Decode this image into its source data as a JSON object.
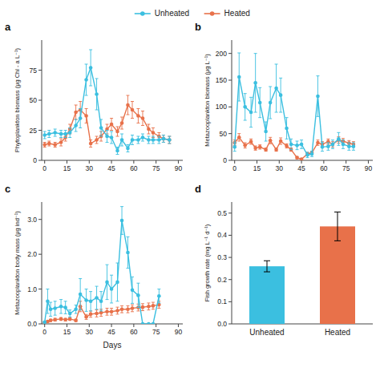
{
  "chart_data": [
    {
      "type": "line",
      "title": "a",
      "ylabel": "Phytoplankton biomass (μg Chl - a L⁻¹)",
      "xlim": [
        -2,
        93
      ],
      "ylim": [
        0,
        100
      ],
      "xticks": [
        0,
        15,
        30,
        45,
        60,
        75,
        90
      ],
      "yticks": [
        0,
        25,
        50,
        75
      ],
      "legend": "top",
      "x": [
        0,
        3,
        7,
        11,
        14,
        17,
        21,
        24,
        28,
        31,
        35,
        38,
        42,
        45,
        49,
        52,
        56,
        59,
        63,
        66,
        70,
        73,
        77,
        80,
        84
      ],
      "series": [
        {
          "name": "Unheated",
          "color": "#3BBFE0",
          "values": [
            21,
            22,
            23,
            22,
            22,
            23,
            29,
            35,
            67,
            77,
            55,
            27,
            20,
            19,
            8,
            17,
            10,
            17,
            17,
            19,
            17,
            17,
            17,
            18,
            17
          ],
          "errors": [
            3,
            3,
            3,
            3,
            3,
            4,
            5,
            8,
            13,
            15,
            13,
            7,
            5,
            5,
            3,
            5,
            3,
            4,
            3,
            3,
            3,
            3,
            3,
            3,
            3
          ]
        },
        {
          "name": "Heated",
          "color": "#E8714A",
          "values": [
            13,
            14,
            13,
            15,
            19,
            26,
            40,
            42,
            37,
            14,
            17,
            20,
            26,
            30,
            24,
            31,
            46,
            42,
            37,
            35,
            26,
            23,
            20,
            18,
            17
          ],
          "errors": [
            2,
            2,
            2,
            3,
            3,
            4,
            6,
            7,
            6,
            3,
            3,
            4,
            4,
            5,
            4,
            5,
            8,
            7,
            6,
            6,
            4,
            4,
            3,
            3,
            3
          ]
        }
      ]
    },
    {
      "type": "line",
      "title": "b",
      "ylabel": "Metazooplankton biomass (μg L⁻¹)",
      "xlim": [
        -2,
        93
      ],
      "ylim": [
        0,
        225
      ],
      "xticks": [
        0,
        15,
        30,
        45,
        60,
        75,
        90
      ],
      "yticks": [
        0,
        50,
        100,
        150,
        200
      ],
      "x": [
        0,
        3,
        7,
        11,
        14,
        17,
        21,
        24,
        28,
        31,
        35,
        38,
        42,
        45,
        49,
        52,
        56,
        59,
        63,
        66,
        70,
        73,
        77,
        80
      ],
      "series": [
        {
          "name": "Unheated",
          "color": "#3BBFE0",
          "values": [
            25,
            156,
            100,
            90,
            145,
            108,
            54,
            108,
            135,
            122,
            60,
            30,
            28,
            30,
            10,
            12,
            120,
            25,
            26,
            30,
            40,
            30,
            26,
            26
          ],
          "errors": [
            8,
            45,
            25,
            28,
            55,
            28,
            18,
            30,
            45,
            32,
            20,
            10,
            8,
            8,
            5,
            5,
            38,
            8,
            7,
            8,
            12,
            8,
            7,
            7
          ]
        },
        {
          "name": "Heated",
          "color": "#E8714A",
          "values": [
            33,
            43,
            28,
            35,
            23,
            25,
            20,
            37,
            20,
            36,
            27,
            20,
            5,
            2,
            12,
            14,
            33,
            30,
            35,
            30,
            38,
            36,
            32,
            30
          ],
          "errors": [
            5,
            7,
            5,
            5,
            4,
            4,
            3,
            6,
            3,
            6,
            4,
            3,
            2,
            1,
            3,
            3,
            5,
            5,
            5,
            5,
            6,
            5,
            5,
            5
          ]
        }
      ]
    },
    {
      "type": "line",
      "title": "c",
      "ylabel": "Metazooplankton body mass (μg ind⁻¹)",
      "xlabel": "Days",
      "xlim": [
        -2,
        93
      ],
      "ylim": [
        0,
        3.5
      ],
      "xticks": [
        0,
        15,
        30,
        45,
        60,
        75,
        90
      ],
      "yticks": [
        {
          "value": 0,
          "label": "0.0"
        },
        {
          "value": 1,
          "label": "1.0"
        },
        {
          "value": 2,
          "label": "2.0"
        },
        {
          "value": 3,
          "label": "3.0"
        }
      ],
      "x": [
        0,
        2,
        4,
        7,
        11,
        14,
        17,
        21,
        24,
        28,
        31,
        35,
        38,
        42,
        45,
        49,
        52,
        56,
        59,
        63,
        66,
        70,
        73,
        77
      ],
      "series": [
        {
          "name": "Unheated",
          "color": "#3BBFE0",
          "values": [
            0.05,
            0.65,
            0.42,
            0.45,
            0.5,
            0.47,
            0.3,
            0.42,
            0.85,
            0.68,
            0.65,
            0.75,
            0.65,
            1.2,
            1.0,
            1.2,
            2.97,
            2.05,
            0.97,
            0.82,
            0.0,
            0.0,
            0.0,
            0.8
          ],
          "errors": [
            0.02,
            0.35,
            0.2,
            0.2,
            0.2,
            0.18,
            0.1,
            0.12,
            0.45,
            0.32,
            0.28,
            0.33,
            0.28,
            0.5,
            0.4,
            0.55,
            0.4,
            0.45,
            0.38,
            0.35,
            0.0,
            0.0,
            0.0,
            0.2
          ]
        },
        {
          "name": "Heated",
          "color": "#E8714A",
          "values": [
            0.04,
            0.07,
            0.1,
            0.12,
            0.14,
            0.12,
            0.14,
            0.1,
            0.5,
            0.2,
            0.28,
            0.3,
            0.32,
            0.35,
            0.35,
            0.38,
            0.42,
            0.42,
            0.45,
            0.47,
            0.48,
            0.5,
            0.52,
            0.55
          ],
          "errors": [
            0.01,
            0.02,
            0.03,
            0.04,
            0.04,
            0.04,
            0.04,
            0.03,
            0.15,
            0.07,
            0.09,
            0.1,
            0.1,
            0.1,
            0.1,
            0.1,
            0.1,
            0.1,
            0.1,
            0.1,
            0.1,
            0.1,
            0.1,
            0.1
          ]
        }
      ]
    },
    {
      "type": "bar",
      "title": "d",
      "ylabel": "Fish growth rate (mg L⁻¹ d⁻¹)",
      "ylim": [
        0,
        0.55
      ],
      "yticks": [
        {
          "value": 0,
          "label": "0.0"
        },
        0.1,
        0.2,
        0.3,
        0.4,
        0.5
      ],
      "categories": [
        "Unheated",
        "Heated"
      ],
      "values": [
        0.26,
        0.44
      ],
      "errors": [
        0.025,
        0.065
      ],
      "colors": [
        "#3BBFE0",
        "#E8714A"
      ]
    }
  ]
}
